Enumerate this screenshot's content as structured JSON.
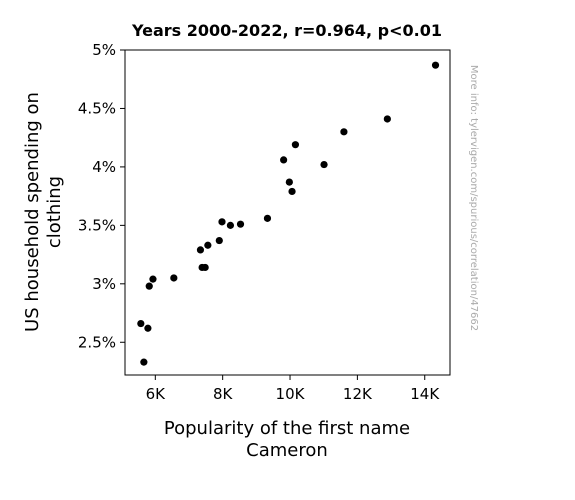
{
  "chart_data": {
    "type": "scatter",
    "title": "Years 2000-2022, r=0.964, p<0.01",
    "xlabel_lines": [
      "Popularity of the first name",
      "Cameron"
    ],
    "ylabel_lines": [
      "US household spending on",
      "clothing"
    ],
    "side_note": "More info: tylervigen.com/spurious/correlation/47662",
    "xlim": [
      5100,
      14750
    ],
    "ylim": [
      2.22,
      5.0
    ],
    "x_ticks": [
      {
        "value": 6000,
        "label": "6K"
      },
      {
        "value": 8000,
        "label": "8K"
      },
      {
        "value": 10000,
        "label": "10K"
      },
      {
        "value": 12000,
        "label": "12K"
      },
      {
        "value": 14000,
        "label": "14K"
      }
    ],
    "y_ticks": [
      {
        "value": 2.5,
        "label": "2.5%"
      },
      {
        "value": 3.0,
        "label": "3%"
      },
      {
        "value": 3.5,
        "label": "3.5%"
      },
      {
        "value": 4.0,
        "label": "4%"
      },
      {
        "value": 4.5,
        "label": "4.5%"
      },
      {
        "value": 5.0,
        "label": "5%"
      }
    ],
    "grid": false,
    "point_color": "#000000",
    "points": [
      {
        "x": 5570,
        "y": 2.66
      },
      {
        "x": 5660,
        "y": 2.33
      },
      {
        "x": 5780,
        "y": 2.62
      },
      {
        "x": 5820,
        "y": 2.98
      },
      {
        "x": 5930,
        "y": 3.04
      },
      {
        "x": 6550,
        "y": 3.05
      },
      {
        "x": 7340,
        "y": 3.29
      },
      {
        "x": 7390,
        "y": 3.14
      },
      {
        "x": 7480,
        "y": 3.14
      },
      {
        "x": 7560,
        "y": 3.33
      },
      {
        "x": 7900,
        "y": 3.37
      },
      {
        "x": 7980,
        "y": 3.53
      },
      {
        "x": 8230,
        "y": 3.5
      },
      {
        "x": 8530,
        "y": 3.51
      },
      {
        "x": 9330,
        "y": 3.56
      },
      {
        "x": 9810,
        "y": 4.06
      },
      {
        "x": 9980,
        "y": 3.87
      },
      {
        "x": 10060,
        "y": 3.79
      },
      {
        "x": 10160,
        "y": 4.19
      },
      {
        "x": 11010,
        "y": 4.02
      },
      {
        "x": 11600,
        "y": 4.3
      },
      {
        "x": 12890,
        "y": 4.41
      },
      {
        "x": 14320,
        "y": 4.87
      }
    ]
  }
}
